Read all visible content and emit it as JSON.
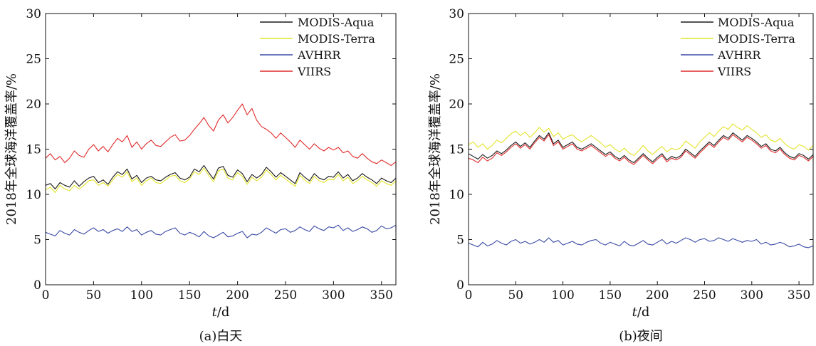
{
  "chart_data": [
    {
      "type": "line",
      "caption": "(a)白天",
      "xlabel_italic": "t",
      "xlabel_unit": "/d",
      "ylabel": "2018年全球海洋覆盖率/%",
      "xlim": [
        0,
        365
      ],
      "ylim": [
        0,
        30
      ],
      "xticks": [
        0,
        50,
        100,
        150,
        200,
        250,
        300,
        350
      ],
      "yticks": [
        0,
        5,
        10,
        15,
        20,
        25,
        30
      ],
      "legend_position": "top-right",
      "x_step": 5,
      "series": [
        {
          "name": "MODIS-Aqua",
          "color": "#1a1a1a",
          "values": [
            11.0,
            11.2,
            10.6,
            11.3,
            11.0,
            10.8,
            11.5,
            10.9,
            11.4,
            11.8,
            12.0,
            11.3,
            11.6,
            11.1,
            11.9,
            12.5,
            12.2,
            12.8,
            11.7,
            12.1,
            11.3,
            11.8,
            12.0,
            11.6,
            11.5,
            11.9,
            12.2,
            12.4,
            11.8,
            11.6,
            11.9,
            12.8,
            12.5,
            13.2,
            12.4,
            11.7,
            12.9,
            13.1,
            12.1,
            11.9,
            12.7,
            12.3,
            11.4,
            12.2,
            11.8,
            12.2,
            13.0,
            12.5,
            11.9,
            12.4,
            12.0,
            11.6,
            11.2,
            12.4,
            11.9,
            11.5,
            12.3,
            11.8,
            11.6,
            12.0,
            11.9,
            12.5,
            11.8,
            12.2,
            11.5,
            11.8,
            12.3,
            11.9,
            11.6,
            11.2,
            11.8,
            11.5,
            11.3,
            11.8,
            11.2,
            11.0
          ]
        },
        {
          "name": "MODIS-Terra",
          "color": "#e3e32a",
          "values": [
            10.5,
            10.8,
            10.2,
            11.0,
            10.6,
            10.4,
            11.0,
            10.6,
            11.0,
            11.5,
            11.6,
            11.0,
            11.3,
            10.9,
            11.6,
            12.2,
            11.9,
            12.5,
            11.4,
            11.8,
            11.0,
            11.5,
            11.8,
            11.3,
            11.2,
            11.6,
            12.0,
            12.1,
            11.5,
            11.3,
            11.7,
            12.5,
            12.2,
            12.9,
            12.1,
            11.4,
            12.6,
            12.8,
            11.8,
            11.6,
            12.4,
            12.0,
            11.1,
            11.9,
            11.5,
            11.9,
            12.7,
            12.2,
            11.6,
            12.1,
            11.7,
            11.3,
            10.9,
            12.1,
            11.6,
            11.2,
            12.0,
            11.5,
            11.3,
            11.7,
            11.6,
            12.2,
            11.5,
            11.9,
            11.2,
            11.5,
            12.0,
            11.6,
            11.3,
            10.9,
            11.5,
            11.2,
            11.0,
            11.5,
            10.9,
            10.0
          ]
        },
        {
          "name": "AVHRR",
          "color": "#3a4aa6",
          "values": [
            5.8,
            5.6,
            5.4,
            6.0,
            5.7,
            5.5,
            6.1,
            5.8,
            5.6,
            6.0,
            6.3,
            5.9,
            6.1,
            5.7,
            6.0,
            6.2,
            5.9,
            6.4,
            5.9,
            6.1,
            5.5,
            5.8,
            6.0,
            5.6,
            5.5,
            5.9,
            6.1,
            6.3,
            5.7,
            5.5,
            5.8,
            5.6,
            5.3,
            5.9,
            5.4,
            5.2,
            5.5,
            5.8,
            5.3,
            5.4,
            5.7,
            5.9,
            5.2,
            5.6,
            5.5,
            5.8,
            6.3,
            6.0,
            5.7,
            6.1,
            6.2,
            5.8,
            6.0,
            6.4,
            6.1,
            5.9,
            6.5,
            6.2,
            6.0,
            6.4,
            6.3,
            6.6,
            6.0,
            6.3,
            5.9,
            6.1,
            6.4,
            6.2,
            5.8,
            6.0,
            6.5,
            6.2,
            6.3,
            6.6,
            6.2,
            5.8
          ]
        },
        {
          "name": "VIIRS",
          "color": "#e02a2a",
          "values": [
            14.0,
            14.5,
            13.8,
            14.2,
            13.5,
            14.0,
            14.8,
            14.3,
            14.1,
            15.0,
            15.5,
            14.8,
            15.3,
            14.7,
            15.5,
            16.2,
            15.8,
            16.5,
            15.2,
            15.8,
            15.0,
            15.6,
            16.0,
            15.4,
            15.3,
            15.8,
            16.3,
            16.6,
            15.9,
            16.0,
            16.5,
            17.2,
            17.8,
            18.5,
            17.6,
            17.0,
            18.2,
            18.8,
            17.9,
            18.5,
            19.3,
            20.0,
            18.8,
            19.5,
            18.2,
            17.5,
            17.2,
            16.8,
            16.2,
            16.8,
            16.3,
            15.8,
            15.2,
            16.0,
            15.5,
            15.0,
            15.6,
            15.1,
            14.8,
            15.2,
            14.9,
            15.2,
            14.6,
            14.8,
            14.2,
            14.0,
            14.5,
            14.0,
            13.6,
            13.4,
            13.8,
            13.5,
            13.2,
            13.6,
            13.1,
            12.8
          ]
        }
      ]
    },
    {
      "type": "line",
      "caption": "(b)夜间",
      "xlabel_italic": "t",
      "xlabel_unit": "/d",
      "ylabel": "2018年全球海洋覆盖率/%",
      "xlim": [
        0,
        365
      ],
      "ylim": [
        0,
        30
      ],
      "xticks": [
        0,
        50,
        100,
        150,
        200,
        250,
        300,
        350
      ],
      "yticks": [
        0,
        5,
        10,
        15,
        20,
        25,
        30
      ],
      "legend_position": "top-right",
      "x_step": 5,
      "series": [
        {
          "name": "MODIS-Aqua",
          "color": "#1a1a1a",
          "values": [
            14.5,
            14.2,
            13.9,
            14.4,
            14.0,
            14.3,
            14.8,
            14.5,
            14.9,
            15.4,
            15.8,
            15.3,
            15.7,
            15.2,
            15.9,
            16.5,
            16.1,
            16.8,
            15.6,
            16.0,
            15.2,
            15.5,
            15.8,
            15.2,
            15.0,
            15.3,
            15.6,
            15.2,
            14.8,
            14.4,
            14.7,
            14.2,
            13.9,
            14.3,
            13.8,
            13.5,
            14.0,
            14.5,
            14.0,
            13.6,
            14.1,
            14.5,
            13.8,
            14.2,
            14.0,
            14.3,
            15.0,
            14.6,
            14.2,
            14.8,
            15.3,
            15.8,
            15.4,
            16.0,
            16.5,
            16.2,
            16.8,
            16.4,
            16.0,
            16.5,
            16.2,
            15.8,
            15.3,
            15.6,
            15.0,
            14.8,
            15.2,
            14.6,
            14.2,
            14.0,
            14.5,
            14.3,
            13.9,
            14.4,
            14.0,
            14.2
          ]
        },
        {
          "name": "MODIS-Terra",
          "color": "#e3e32a",
          "values": [
            15.5,
            15.8,
            15.2,
            15.6,
            15.0,
            15.4,
            16.0,
            15.7,
            16.2,
            16.7,
            17.0,
            16.5,
            16.9,
            16.3,
            16.8,
            17.4,
            16.9,
            17.3,
            16.4,
            16.8,
            16.1,
            16.4,
            16.6,
            16.1,
            15.8,
            16.2,
            16.5,
            16.1,
            15.7,
            15.2,
            15.5,
            15.0,
            14.7,
            15.1,
            14.6,
            14.3,
            14.8,
            15.4,
            14.8,
            14.4,
            14.9,
            15.3,
            14.7,
            15.1,
            14.9,
            15.2,
            15.9,
            15.5,
            15.1,
            15.8,
            16.3,
            16.8,
            16.4,
            17.0,
            17.5,
            17.2,
            17.8,
            17.4,
            17.1,
            17.6,
            17.2,
            16.8,
            16.3,
            16.6,
            16.0,
            15.8,
            16.2,
            15.6,
            15.2,
            15.0,
            15.5,
            15.3,
            14.9,
            15.4,
            15.0,
            15.3
          ]
        },
        {
          "name": "AVHRR",
          "color": "#3a4aa6",
          "values": [
            4.6,
            4.4,
            4.2,
            4.7,
            4.3,
            4.5,
            4.9,
            4.6,
            4.4,
            4.8,
            5.0,
            4.6,
            4.8,
            4.5,
            4.7,
            5.0,
            4.7,
            5.2,
            4.7,
            4.9,
            4.4,
            4.6,
            4.8,
            4.5,
            4.4,
            4.7,
            4.9,
            5.0,
            4.6,
            4.4,
            4.7,
            4.5,
            4.3,
            4.8,
            4.4,
            4.3,
            4.6,
            4.9,
            4.5,
            4.4,
            4.7,
            5.0,
            4.5,
            4.8,
            4.6,
            4.9,
            5.2,
            5.0,
            4.7,
            5.0,
            5.1,
            4.8,
            4.9,
            5.2,
            5.0,
            4.8,
            5.1,
            4.9,
            4.7,
            4.9,
            4.8,
            5.0,
            4.5,
            4.7,
            4.4,
            4.5,
            4.7,
            4.5,
            4.2,
            4.3,
            4.5,
            4.2,
            4.1,
            4.3,
            4.0,
            4.1
          ]
        },
        {
          "name": "VIIRS",
          "color": "#e02a2a",
          "values": [
            14.0,
            13.8,
            13.5,
            14.1,
            13.7,
            14.0,
            14.6,
            14.3,
            14.7,
            15.2,
            15.6,
            15.1,
            15.5,
            15.0,
            15.7,
            16.3,
            15.9,
            16.6,
            15.4,
            15.8,
            15.0,
            15.3,
            15.6,
            15.0,
            14.8,
            15.1,
            15.4,
            15.0,
            14.6,
            14.2,
            14.5,
            14.0,
            13.7,
            14.1,
            13.6,
            13.3,
            13.8,
            14.3,
            13.8,
            13.4,
            13.9,
            14.3,
            13.6,
            14.0,
            13.8,
            14.1,
            14.8,
            14.4,
            14.0,
            14.6,
            15.1,
            15.6,
            15.2,
            15.8,
            16.3,
            16.0,
            16.6,
            16.2,
            15.8,
            16.3,
            16.0,
            15.6,
            15.1,
            15.4,
            14.8,
            14.6,
            15.0,
            14.4,
            14.0,
            13.8,
            14.3,
            14.1,
            13.7,
            14.2,
            13.8,
            13.9
          ]
        }
      ]
    }
  ]
}
